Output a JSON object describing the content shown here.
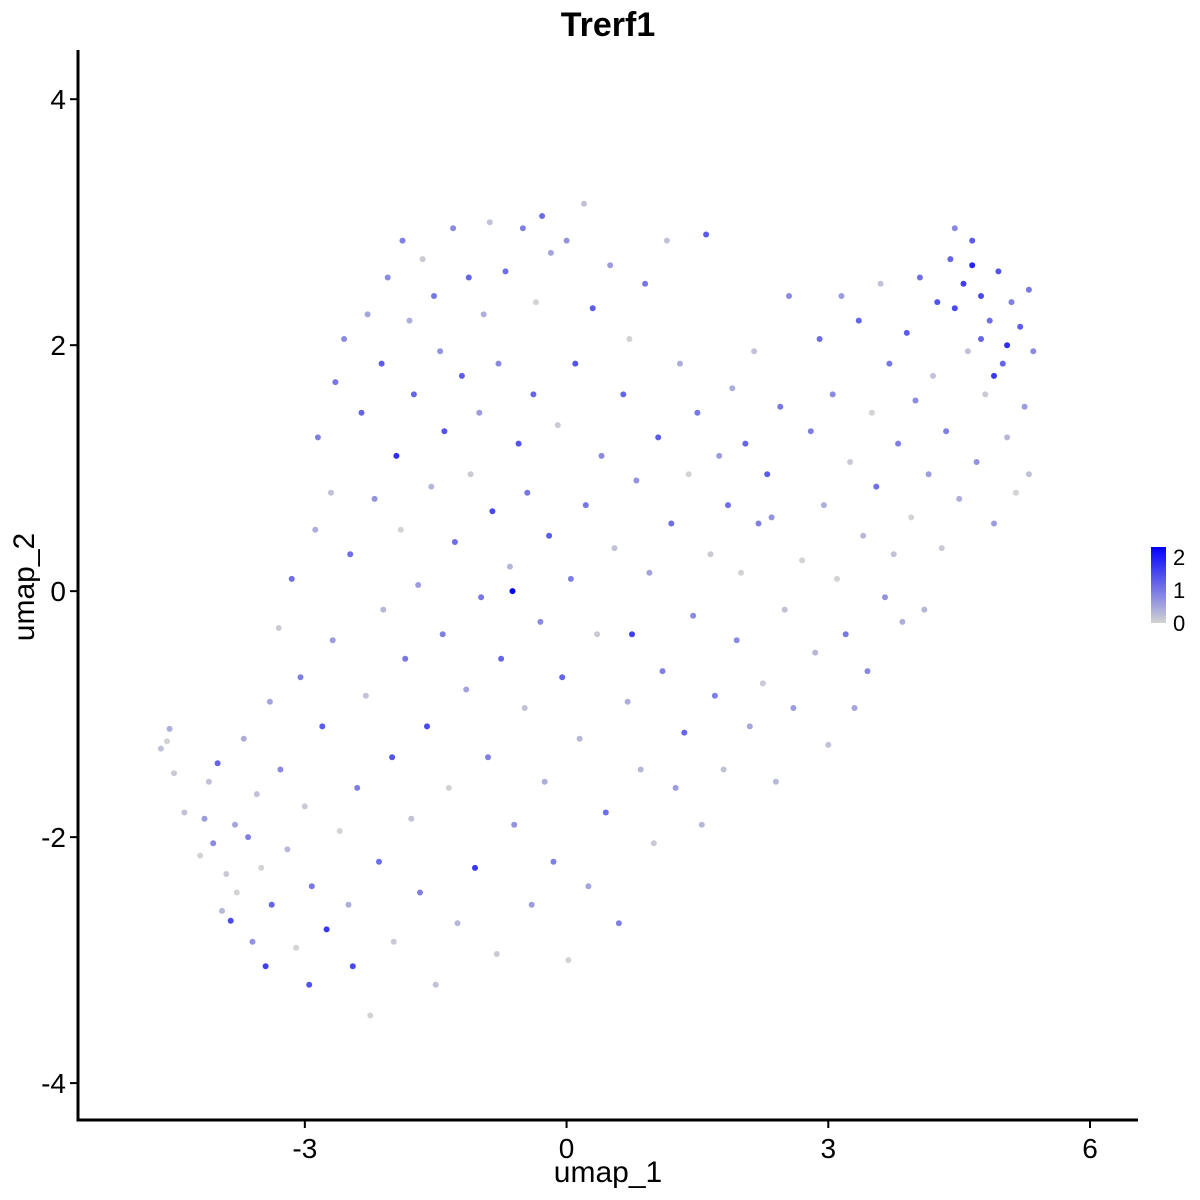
{
  "chart_data": {
    "type": "scatter",
    "title": "Trerf1",
    "xlabel": "umap_1",
    "ylabel": "umap_2",
    "xlim": [
      -5.6,
      6.55
    ],
    "ylim": [
      -4.3,
      4.4
    ],
    "xticks": [
      -3,
      0,
      3,
      6
    ],
    "yticks": [
      -4,
      -2,
      0,
      2,
      4
    ],
    "grid": false,
    "legend": {
      "placement": "right",
      "type": "colorbar",
      "ticks": [
        0,
        1,
        2
      ],
      "range": [
        0,
        2.3
      ],
      "low_color": "#d3d3d3",
      "high_color": "#0000ff"
    },
    "points": [
      [
        -4.65,
        -1.28,
        0.2
      ],
      [
        -4.58,
        -1.22,
        0
      ],
      [
        -4.55,
        -1.12,
        0.4
      ],
      [
        -4.5,
        -1.48,
        0.1
      ],
      [
        -4.38,
        -1.8,
        0.2
      ],
      [
        -4.2,
        -2.15,
        0
      ],
      [
        -4.15,
        -1.85,
        0.6
      ],
      [
        -4.1,
        -1.55,
        0.2
      ],
      [
        -4.05,
        -2.05,
        0.8
      ],
      [
        -4.0,
        -1.4,
        1.2
      ],
      [
        -3.95,
        -2.6,
        0.3
      ],
      [
        -3.9,
        -2.3,
        0.1
      ],
      [
        -3.85,
        -2.68,
        1.5
      ],
      [
        -3.8,
        -1.9,
        0.5
      ],
      [
        -3.78,
        -2.45,
        0
      ],
      [
        -3.7,
        -1.2,
        0.4
      ],
      [
        -3.65,
        -2.0,
        0.9
      ],
      [
        -3.6,
        -2.85,
        0.7
      ],
      [
        -3.55,
        -1.65,
        0.2
      ],
      [
        -3.5,
        -2.25,
        0
      ],
      [
        -3.45,
        -3.05,
        1.6
      ],
      [
        -3.4,
        -0.9,
        0.5
      ],
      [
        -3.38,
        -2.55,
        1.2
      ],
      [
        -3.3,
        -0.3,
        0.1
      ],
      [
        -3.28,
        -1.45,
        0.8
      ],
      [
        -3.2,
        -2.1,
        0.3
      ],
      [
        -3.15,
        0.1,
        1.1
      ],
      [
        -3.1,
        -2.9,
        0
      ],
      [
        -3.05,
        -0.7,
        0.9
      ],
      [
        -3.0,
        -1.75,
        0.1
      ],
      [
        -2.95,
        -3.2,
        1.4
      ],
      [
        -2.92,
        -2.4,
        1.0
      ],
      [
        -2.88,
        0.5,
        0.4
      ],
      [
        -2.85,
        1.25,
        0.9
      ],
      [
        -2.8,
        -1.1,
        1.3
      ],
      [
        -2.75,
        -2.75,
        1.7
      ],
      [
        -2.7,
        0.8,
        0.2
      ],
      [
        -2.68,
        -0.4,
        0.6
      ],
      [
        -2.65,
        1.7,
        1.0
      ],
      [
        -2.6,
        -1.95,
        0
      ],
      [
        -2.55,
        2.05,
        0.8
      ],
      [
        -2.5,
        -2.55,
        0.4
      ],
      [
        -2.48,
        0.3,
        1.1
      ],
      [
        -2.45,
        -3.05,
        1.5
      ],
      [
        -2.4,
        -1.6,
        0.9
      ],
      [
        -2.35,
        1.45,
        1.2
      ],
      [
        -2.3,
        -0.85,
        0.2
      ],
      [
        -2.28,
        2.25,
        0.5
      ],
      [
        -2.25,
        -3.45,
        0
      ],
      [
        -2.2,
        0.75,
        0.7
      ],
      [
        -2.15,
        -2.2,
        1.1
      ],
      [
        -2.12,
        1.85,
        1.3
      ],
      [
        -2.1,
        -0.15,
        0.3
      ],
      [
        -2.05,
        2.55,
        0.8
      ],
      [
        -2.0,
        -1.35,
        1.4
      ],
      [
        -1.98,
        -2.85,
        0.1
      ],
      [
        -1.95,
        1.1,
        1.8
      ],
      [
        -1.9,
        0.5,
        0
      ],
      [
        -1.88,
        2.85,
        0.9
      ],
      [
        -1.85,
        -0.55,
        1.0
      ],
      [
        -1.8,
        2.2,
        0.4
      ],
      [
        -1.78,
        -1.85,
        0.2
      ],
      [
        -1.75,
        1.6,
        1.2
      ],
      [
        -1.7,
        0.05,
        0.6
      ],
      [
        -1.68,
        -2.45,
        0.9
      ],
      [
        -1.65,
        2.7,
        0.1
      ],
      [
        -1.6,
        -1.1,
        1.5
      ],
      [
        -1.55,
        0.85,
        0.3
      ],
      [
        -1.52,
        2.4,
        1.0
      ],
      [
        -1.5,
        -3.2,
        0.2
      ],
      [
        -1.45,
        1.95,
        0.7
      ],
      [
        -1.42,
        -0.35,
        0.9
      ],
      [
        -1.4,
        1.3,
        1.4
      ],
      [
        -1.35,
        -1.6,
        0
      ],
      [
        -1.3,
        2.95,
        0.8
      ],
      [
        -1.28,
        0.4,
        1.1
      ],
      [
        -1.25,
        -2.7,
        0.3
      ],
      [
        -1.2,
        1.75,
        1.3
      ],
      [
        -1.15,
        -0.8,
        0.5
      ],
      [
        -1.12,
        2.55,
        1.2
      ],
      [
        -1.1,
        0.95,
        0.1
      ],
      [
        -1.05,
        -2.25,
        1.7
      ],
      [
        -1.0,
        1.45,
        0.6
      ],
      [
        -0.98,
        -0.05,
        1.0
      ],
      [
        -0.95,
        2.25,
        0.4
      ],
      [
        -0.9,
        -1.35,
        0.9
      ],
      [
        -0.88,
        3.0,
        0.2
      ],
      [
        -0.85,
        0.65,
        1.5
      ],
      [
        -0.8,
        -2.95,
        0.1
      ],
      [
        -0.78,
        1.85,
        0.8
      ],
      [
        -0.75,
        -0.55,
        1.2
      ],
      [
        -0.7,
        2.6,
        1.1
      ],
      [
        -0.65,
        0.2,
        0.3
      ],
      [
        -0.62,
        0.0,
        2.3
      ],
      [
        -0.6,
        -1.9,
        0.7
      ],
      [
        -0.55,
        1.2,
        1.4
      ],
      [
        -0.5,
        2.95,
        0.9
      ],
      [
        -0.48,
        -0.95,
        0.2
      ],
      [
        -0.45,
        0.8,
        1.0
      ],
      [
        -0.4,
        -2.55,
        0.6
      ],
      [
        -0.38,
        1.6,
        1.2
      ],
      [
        -0.35,
        2.35,
        0
      ],
      [
        -0.3,
        -0.25,
        0.8
      ],
      [
        -0.28,
        3.05,
        1.1
      ],
      [
        -0.25,
        -1.55,
        0.4
      ],
      [
        -0.2,
        0.45,
        1.3
      ],
      [
        -0.18,
        2.75,
        0.5
      ],
      [
        -0.15,
        -2.2,
        0.9
      ],
      [
        -0.1,
        1.35,
        0.1
      ],
      [
        -0.05,
        -0.7,
        1.2
      ],
      [
        0.0,
        2.85,
        0.7
      ],
      [
        0.02,
        -3.0,
        0
      ],
      [
        0.05,
        0.1,
        0.9
      ],
      [
        0.1,
        1.85,
        1.4
      ],
      [
        0.15,
        -1.2,
        0.3
      ],
      [
        0.2,
        3.15,
        0.2
      ],
      [
        0.22,
        0.7,
        1.0
      ],
      [
        0.25,
        -2.4,
        0.5
      ],
      [
        0.3,
        2.3,
        1.3
      ],
      [
        0.35,
        -0.35,
        0.1
      ],
      [
        0.4,
        1.1,
        0.8
      ],
      [
        0.45,
        -1.8,
        1.1
      ],
      [
        0.5,
        2.65,
        0.6
      ],
      [
        0.55,
        0.35,
        0.2
      ],
      [
        0.6,
        -2.7,
        0.9
      ],
      [
        0.65,
        1.6,
        1.2
      ],
      [
        0.7,
        -0.9,
        0.4
      ],
      [
        0.72,
        2.05,
        0
      ],
      [
        0.75,
        -0.35,
        1.6
      ],
      [
        0.8,
        0.9,
        0.7
      ],
      [
        0.85,
        -1.45,
        0.3
      ],
      [
        0.9,
        2.5,
        1.0
      ],
      [
        0.95,
        0.15,
        0.5
      ],
      [
        1.0,
        -2.05,
        0.1
      ],
      [
        1.05,
        1.25,
        1.3
      ],
      [
        1.1,
        -0.65,
        0.9
      ],
      [
        1.15,
        2.85,
        0.2
      ],
      [
        1.2,
        0.55,
        1.1
      ],
      [
        1.25,
        -1.6,
        0.6
      ],
      [
        1.3,
        1.85,
        0.4
      ],
      [
        1.35,
        -1.15,
        1.2
      ],
      [
        1.4,
        0.95,
        0
      ],
      [
        1.45,
        -0.2,
        0.8
      ],
      [
        1.5,
        1.45,
        1.0
      ],
      [
        1.55,
        -1.9,
        0.3
      ],
      [
        1.6,
        2.9,
        1.3
      ],
      [
        1.65,
        0.3,
        0.1
      ],
      [
        1.7,
        -0.85,
        0.9
      ],
      [
        1.75,
        1.1,
        0.6
      ],
      [
        1.8,
        -1.45,
        0.2
      ],
      [
        1.85,
        0.7,
        1.1
      ],
      [
        1.9,
        1.65,
        0.4
      ],
      [
        1.95,
        -0.4,
        0.8
      ],
      [
        2.0,
        0.15,
        0
      ],
      [
        2.05,
        1.2,
        1.2
      ],
      [
        2.1,
        -1.1,
        0.5
      ],
      [
        2.15,
        1.95,
        0.2
      ],
      [
        2.2,
        0.55,
        0.9
      ],
      [
        2.25,
        -0.75,
        0.1
      ],
      [
        2.3,
        0.95,
        1.3
      ],
      [
        2.35,
        0.6,
        0.7
      ],
      [
        2.4,
        -1.55,
        0.3
      ],
      [
        2.45,
        1.5,
        1.0
      ],
      [
        2.5,
        -0.15,
        0.2
      ],
      [
        2.55,
        2.4,
        0.8
      ],
      [
        2.6,
        -0.95,
        0.6
      ],
      [
        2.7,
        0.25,
        0
      ],
      [
        2.8,
        1.3,
        0.9
      ],
      [
        2.85,
        -0.5,
        0.3
      ],
      [
        2.9,
        2.05,
        1.1
      ],
      [
        2.95,
        0.7,
        0.4
      ],
      [
        3.0,
        -1.25,
        0.2
      ],
      [
        3.05,
        1.6,
        0.8
      ],
      [
        3.1,
        0.1,
        0
      ],
      [
        3.15,
        2.4,
        0.6
      ],
      [
        3.2,
        -0.35,
        1.0
      ],
      [
        3.25,
        1.05,
        0.1
      ],
      [
        3.3,
        -0.95,
        0.5
      ],
      [
        3.35,
        2.2,
        1.2
      ],
      [
        3.4,
        0.45,
        0.3
      ],
      [
        3.45,
        -0.65,
        0.8
      ],
      [
        3.5,
        1.45,
        0
      ],
      [
        3.55,
        0.85,
        1.1
      ],
      [
        3.6,
        2.5,
        0.2
      ],
      [
        3.65,
        -0.05,
        0.7
      ],
      [
        3.7,
        1.85,
        1.0
      ],
      [
        3.75,
        0.3,
        0.2
      ],
      [
        3.8,
        1.2,
        0.9
      ],
      [
        3.85,
        -0.25,
        0.4
      ],
      [
        3.9,
        2.1,
        1.3
      ],
      [
        3.95,
        0.6,
        0
      ],
      [
        4.0,
        1.55,
        0.8
      ],
      [
        4.05,
        2.55,
        1.1
      ],
      [
        4.1,
        -0.15,
        0.3
      ],
      [
        4.15,
        0.95,
        0.6
      ],
      [
        4.2,
        1.75,
        0.2
      ],
      [
        4.25,
        2.35,
        1.4
      ],
      [
        4.3,
        0.35,
        0.1
      ],
      [
        4.35,
        1.3,
        0.9
      ],
      [
        4.4,
        2.7,
        1.2
      ],
      [
        4.45,
        2.95,
        0.8
      ],
      [
        4.5,
        0.75,
        0.4
      ],
      [
        4.55,
        2.5,
        1.6
      ],
      [
        4.6,
        1.95,
        0.2
      ],
      [
        4.65,
        2.85,
        1.3
      ],
      [
        4.7,
        1.05,
        0.7
      ],
      [
        4.75,
        2.4,
        1.5
      ],
      [
        4.8,
        1.6,
        0.1
      ],
      [
        4.85,
        2.2,
        1.1
      ],
      [
        4.9,
        0.55,
        0.6
      ],
      [
        4.95,
        2.6,
        1.4
      ],
      [
        5.0,
        1.85,
        1.2
      ],
      [
        5.05,
        1.25,
        0.3
      ],
      [
        5.1,
        2.35,
        0.9
      ],
      [
        5.15,
        0.8,
        0
      ],
      [
        5.2,
        2.15,
        1.3
      ],
      [
        5.25,
        1.5,
        0.6
      ],
      [
        5.3,
        2.45,
        1.0
      ],
      [
        5.35,
        1.95,
        0.8
      ],
      [
        5.3,
        0.95,
        0.2
      ],
      [
        4.9,
        1.75,
        1.7
      ],
      [
        4.65,
        2.65,
        1.9
      ],
      [
        4.45,
        2.3,
        1.5
      ],
      [
        5.05,
        2.0,
        1.8
      ],
      [
        4.75,
        2.05,
        1.2
      ]
    ]
  }
}
